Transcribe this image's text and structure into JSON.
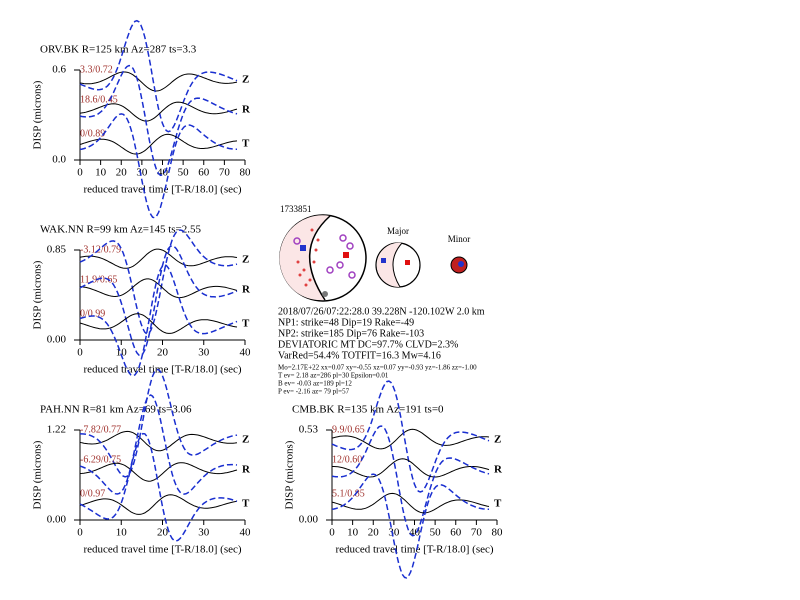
{
  "panels": [
    {
      "title": "ORV.BK R=125 km Az=287 ts=3.3",
      "ylabel": "DISP (microns)",
      "ymax": "0.6",
      "ymin": "0.0",
      "xlabel": "reduced travel time [T-R/18.0] (sec)",
      "xticks": [
        "0",
        "10",
        "20",
        "30",
        "40",
        "50",
        "60",
        "70",
        "80"
      ],
      "components": [
        {
          "name": "Z",
          "label": "3.3/0.72"
        },
        {
          "name": "R",
          "label": "18.6/0.45"
        },
        {
          "name": "T",
          "label": "0/0.89"
        }
      ]
    },
    {
      "title": "WAK.NN R=99 km Az=145 ts=2.55",
      "ylabel": "DISP (microns)",
      "ymax": "0.85",
      "ymin": "0.00",
      "xlabel": "reduced travel time [T-R/18.0] (sec)",
      "xticks": [
        "0",
        "10",
        "20",
        "30",
        "40"
      ],
      "components": [
        {
          "name": "Z",
          "label": "-3.12/0.79"
        },
        {
          "name": "R",
          "label": "11.9/0.65"
        },
        {
          "name": "T",
          "label": "0/0.99"
        }
      ]
    },
    {
      "title": "PAH.NN R=81 km Az=69 ts=3.06",
      "ylabel": "DISP (microns)",
      "ymax": "1.22",
      "ymin": "0.00",
      "xlabel": "reduced travel time [T-R/18.0] (sec)",
      "xticks": [
        "0",
        "10",
        "20",
        "30",
        "40"
      ],
      "components": [
        {
          "name": "Z",
          "label": "-7.82/0.77"
        },
        {
          "name": "R",
          "label": "-6.29/0.75"
        },
        {
          "name": "T",
          "label": "0/0.97"
        }
      ]
    },
    {
      "title": "CMB.BK R=135 km Az=191 ts=0",
      "ylabel": "DISP (microns)",
      "ymax": "0.53",
      "ymin": "0.00",
      "xlabel": "reduced travel time [T-R/18.0] (sec)",
      "xticks": [
        "0",
        "10",
        "20",
        "30",
        "40",
        "50",
        "60",
        "70",
        "80"
      ],
      "components": [
        {
          "name": "Z",
          "label": "9.9/0.65"
        },
        {
          "name": "R",
          "label": "12/0.60"
        },
        {
          "name": "T",
          "label": "5.1/0.85"
        }
      ]
    }
  ],
  "event": {
    "id": "1733851",
    "major": "Major",
    "minor": "Minor",
    "lines": [
      "2018/07/26/07:22:28.0 39.228N -120.102W 2.0 km",
      "NP1: strike=48 Dip=19 Rake=-49",
      "NP2: strike=185 Dip=76 Rake=-103",
      "DEVIATORIC MT DC=97.7% CLVD=2.3%",
      "VarRed=54.4% TOTFIT=16.3 Mw=4.16"
    ],
    "small_lines": [
      "Mo=2.17E+22 xx=0.07 xy=-0.55 xz=0.07 yy=-0.93 yz=-1.86 zz=-1.00",
      "T ev= 2.18 az=286 pl=30 Epsilon=0.01",
      "B ev= -0.03 az=189 pl=12",
      "P ev= -2.16 az= 79 pl=57"
    ]
  }
}
